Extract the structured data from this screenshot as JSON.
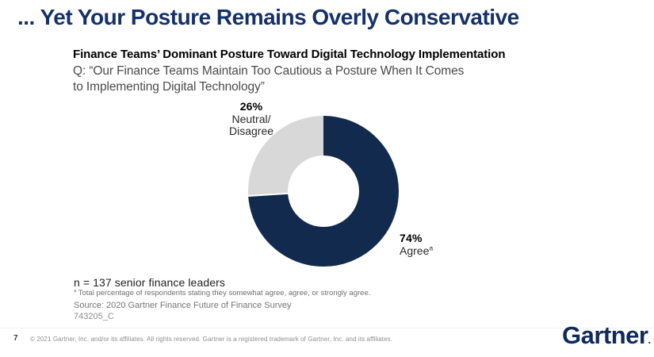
{
  "slide": {
    "title": "... Yet Your Posture Remains Overly Conservative",
    "page_number": "7",
    "copyright": "© 2021 Gartner, Inc. and/or its affiliates. All rights reserved. Gartner is a registered trademark of Gartner, Inc. and its affiliates.",
    "logo_text": "Gartner",
    "logo_mark": "."
  },
  "chart": {
    "title": "Finance Teams’ Dominant Posture Toward Digital Technology Implementation",
    "question_line1": "Q: “Our Finance Teams Maintain Too Cautious a Posture When It Comes",
    "question_line2": "to Implementing Digital Technology”",
    "labels": {
      "neutral_pct": "26%",
      "neutral_line1": "Neutral/",
      "neutral_line2": "Disagree",
      "agree_pct": "74%",
      "agree_text": "Agree",
      "agree_sup": "a"
    },
    "notes": {
      "n_line": "n = 137 senior finance leaders",
      "footnote_sup": "a",
      "footnote_text": " Total percentage of respondents stating they somewhat agree, agree, or strongly agree.",
      "source": "Source: 2020 Gartner Finance Future of Finance Survey",
      "doc_id": "743205_C"
    }
  },
  "chart_data": {
    "type": "pie",
    "donut": true,
    "title": "Finance Teams’ Dominant Posture Toward Digital Technology Implementation",
    "categories": [
      "Agree",
      "Neutral/Disagree"
    ],
    "values": [
      74,
      26
    ],
    "unit": "%",
    "colors": [
      "#122a4d",
      "#d8d8d8"
    ],
    "start_angle_deg": 0,
    "direction": "clockwise",
    "legend_position": "callout-labels",
    "n": 137
  },
  "colors": {
    "title_navy": "#15316a",
    "donut_agree": "#122a4d",
    "donut_neutral": "#d8d8d8",
    "logo_navy": "#12295c"
  }
}
